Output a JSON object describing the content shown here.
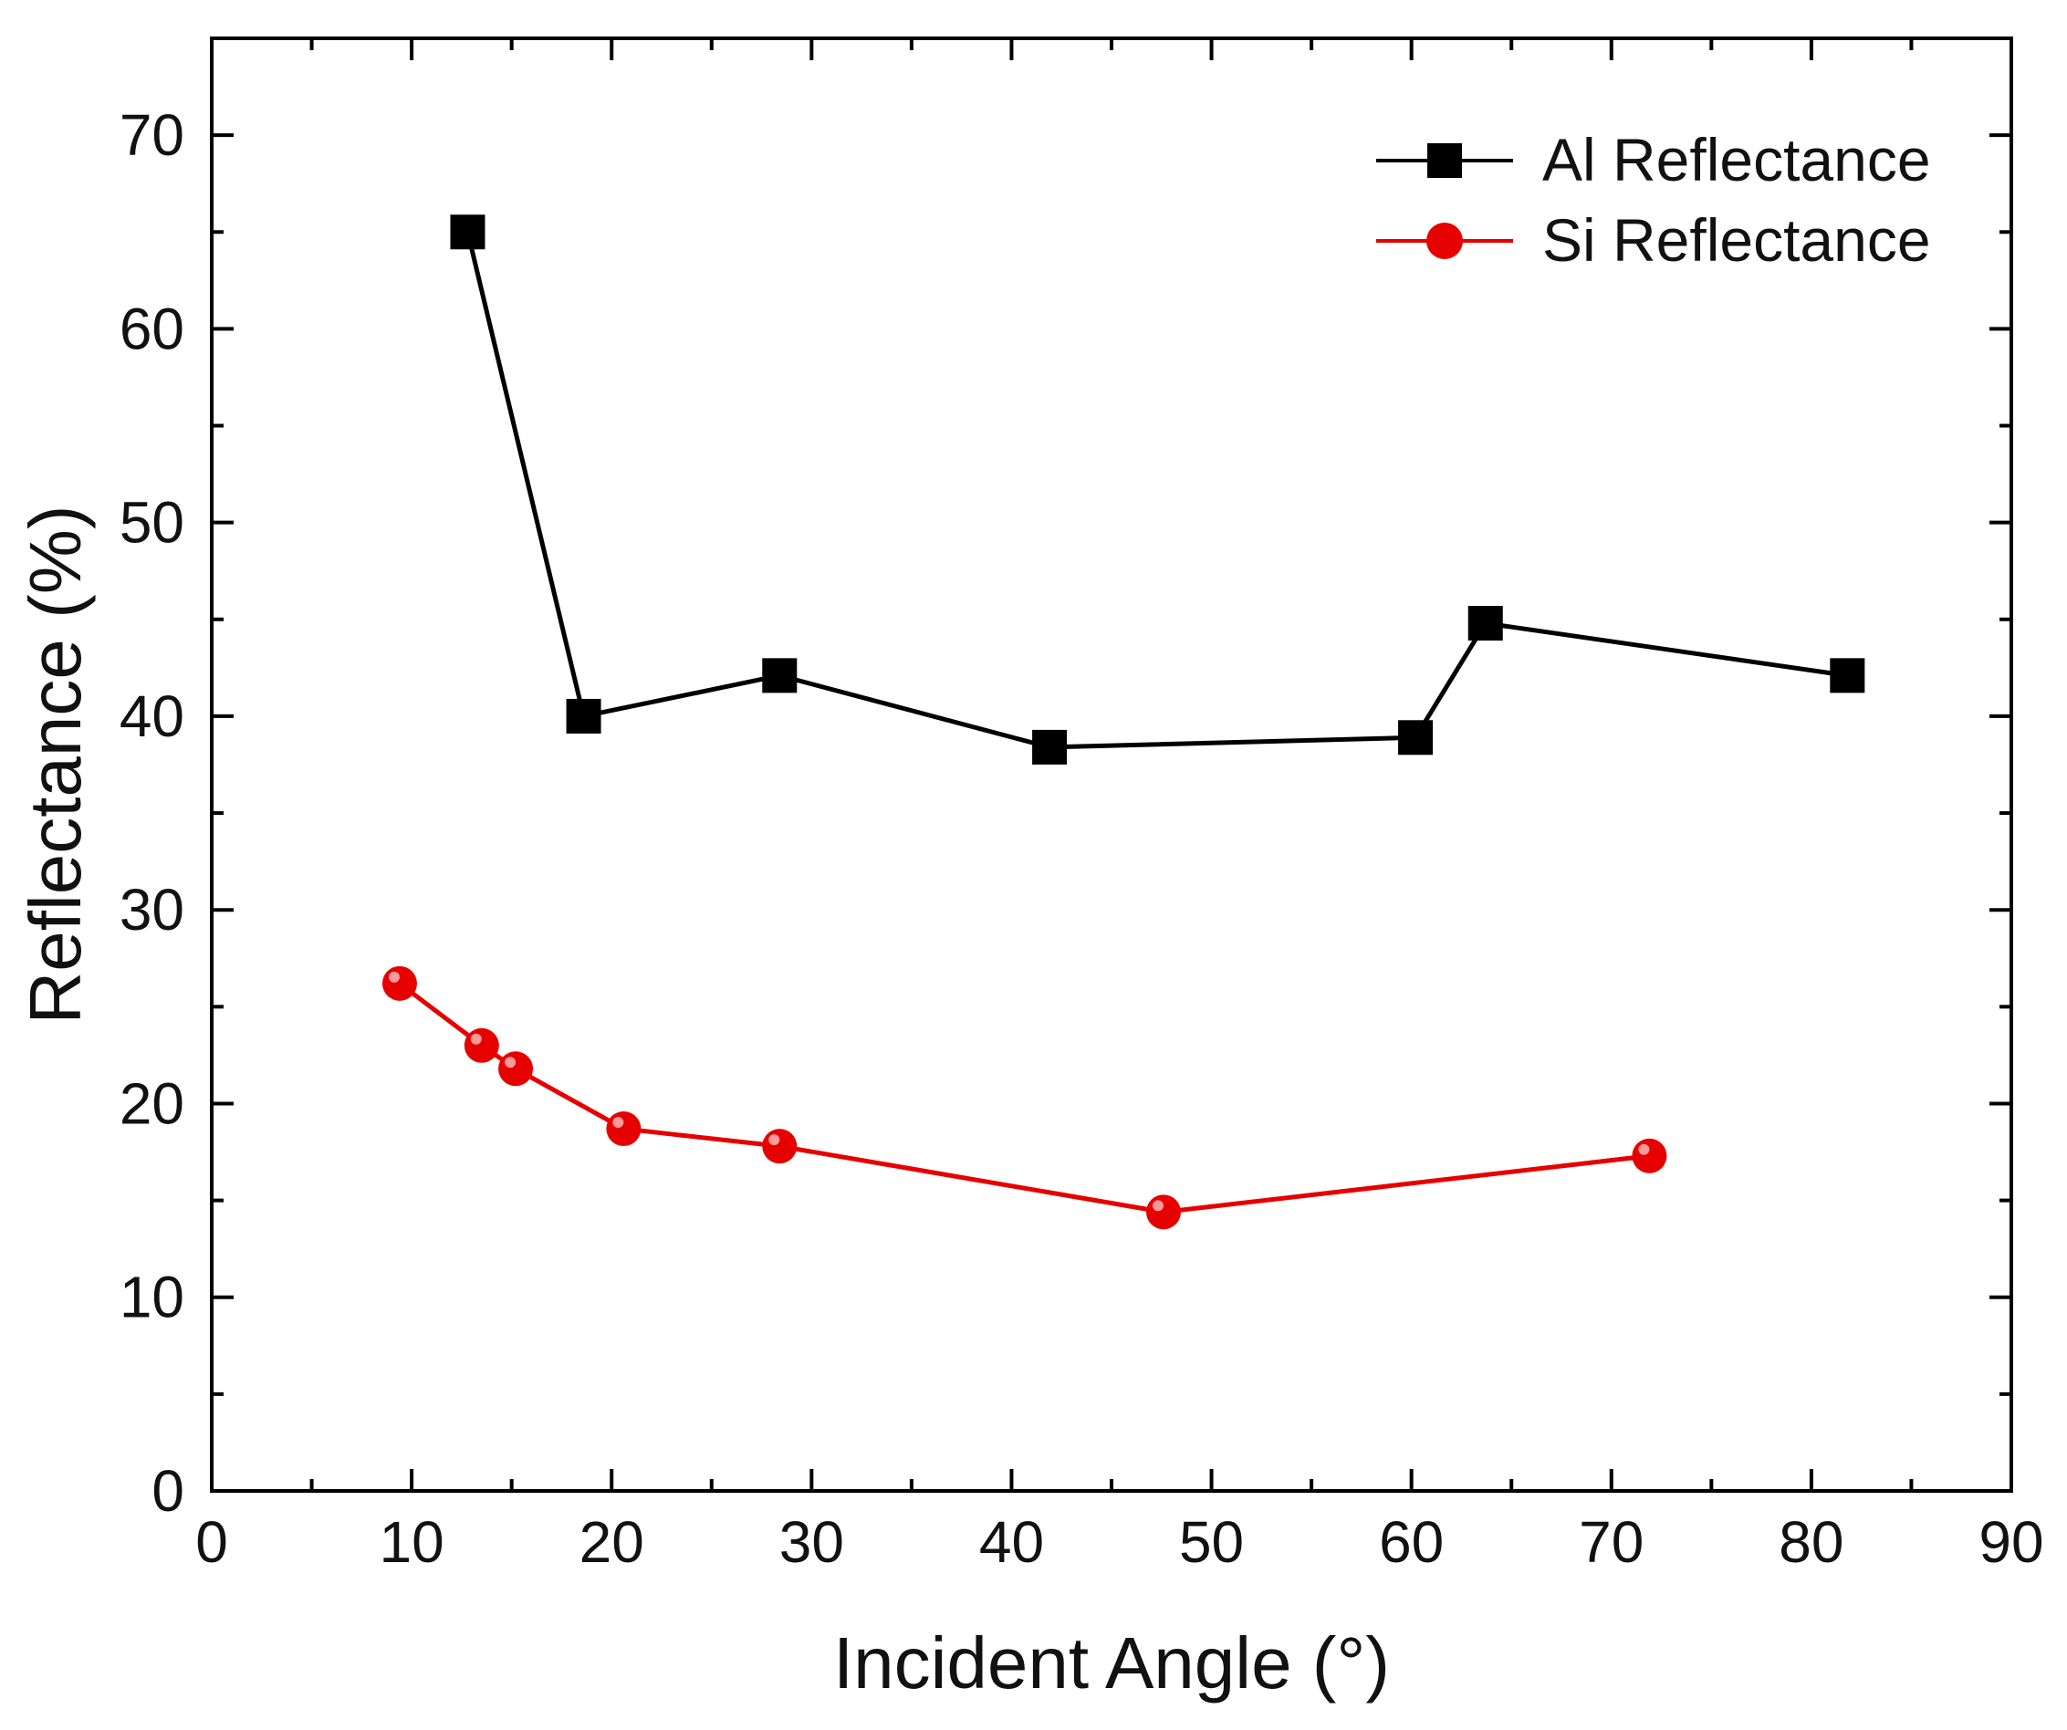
{
  "chart_data": {
    "type": "line",
    "title": "",
    "xlabel": "Incident Angle (°)",
    "ylabel": "Reflectance (%)",
    "xlim": [
      0,
      90
    ],
    "ylim": [
      0,
      75
    ],
    "x_ticks": [
      "0",
      "10",
      "20",
      "30",
      "40",
      "50",
      "60",
      "70",
      "80",
      "90"
    ],
    "y_ticks": [
      "0",
      "10",
      "20",
      "30",
      "40",
      "50",
      "60",
      "70"
    ],
    "grid": false,
    "legend_position": "top-right",
    "series": [
      {
        "name": "Al Reflectance",
        "color": "#000000",
        "marker": "square",
        "x": [
          12.8,
          18.6,
          28.4,
          41.9,
          60.2,
          63.7,
          81.8
        ],
        "y": [
          65.0,
          40.0,
          42.1,
          38.4,
          38.9,
          44.8,
          42.1
        ]
      },
      {
        "name": "Si Reflectance",
        "color": "#e60000",
        "marker": "circle",
        "x": [
          9.4,
          13.5,
          15.2,
          20.6,
          28.4,
          47.6,
          71.9
        ],
        "y": [
          26.2,
          23.0,
          21.8,
          18.7,
          17.8,
          14.4,
          17.3
        ]
      }
    ]
  }
}
